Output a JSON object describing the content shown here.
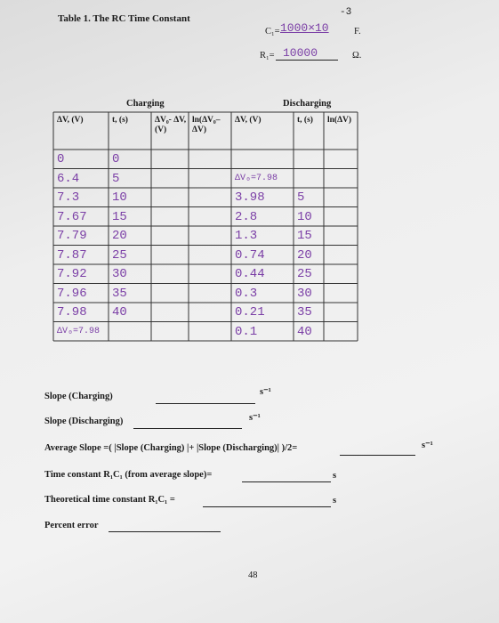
{
  "header": {
    "title": "Table 1. The RC Time Constant",
    "c1": {
      "label": "C₁=",
      "value": "1000×10",
      "exponent": "-3",
      "unit": "F."
    },
    "r1": {
      "label": "R₁=",
      "value": "10000",
      "unit": "Ω."
    }
  },
  "table": {
    "groups": [
      "Charging",
      "Discharging"
    ],
    "columns": [
      "ΔV, (V)",
      "t, (s)",
      "ΔV₀- ΔV, (V)",
      "ln(ΔV₀– ΔV)",
      "ΔV, (V)",
      "t, (s)",
      "ln(ΔV)"
    ],
    "rows": [
      {
        "charging_dv": "0",
        "charging_t": "0"
      },
      {
        "charging_dv": "6.4",
        "charging_t": "5",
        "discharging_dv": "ΔV₀=7.98"
      },
      {
        "charging_dv": "7.3",
        "charging_t": "10",
        "discharging_dv": "3.98",
        "discharging_t": "5"
      },
      {
        "charging_dv": "7.67",
        "charging_t": "15",
        "discharging_dv": "2.8",
        "discharging_t": "10"
      },
      {
        "charging_dv": "7.79",
        "charging_t": "20",
        "discharging_dv": "1.3",
        "discharging_t": "15"
      },
      {
        "charging_dv": "7.87",
        "charging_t": "25",
        "discharging_dv": "0.74",
        "discharging_t": "20"
      },
      {
        "charging_dv": "7.92",
        "charging_t": "30",
        "discharging_dv": "0.44",
        "discharging_t": "25"
      },
      {
        "charging_dv": "7.96",
        "charging_t": "35",
        "discharging_dv": "0.3",
        "discharging_t": "30"
      },
      {
        "charging_dv": "7.98",
        "charging_t": "40",
        "discharging_dv": "0.21",
        "discharging_t": "35"
      },
      {
        "charging_dv": "ΔV₀=7.98",
        "discharging_dv": "0.1",
        "discharging_t": "40"
      }
    ]
  },
  "questions": {
    "slope_charging": {
      "label": "Slope (Charging)",
      "unit": "s⁻¹"
    },
    "slope_discharging": {
      "label": "Slope (Discharging)",
      "unit": "s⁻¹"
    },
    "average_slope": {
      "label": "Average Slope =( |Slope (Charging) |+ |Slope (Discharging)| )/2=",
      "unit": "s⁻¹"
    },
    "time_constant": {
      "label": "Time constant R₁C₁ (from average slope)=",
      "unit": "s"
    },
    "theoretical": {
      "label": "Theoretical time constant R₁C₁ =",
      "unit": "s"
    },
    "percent_error": {
      "label": "Percent error"
    }
  },
  "page_number": "48"
}
